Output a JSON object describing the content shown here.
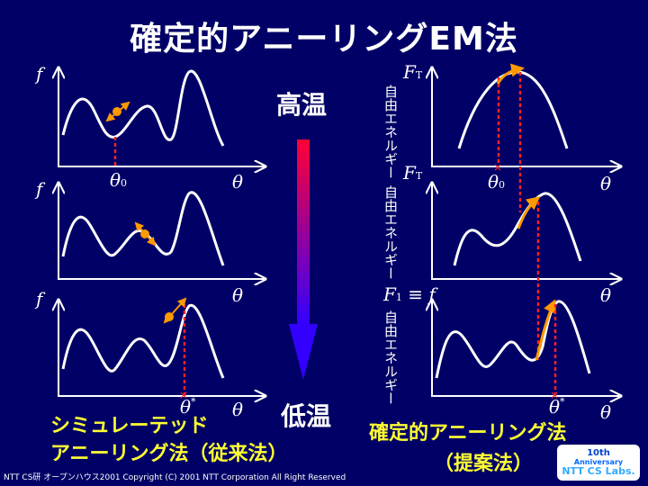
{
  "title": "確定的アニーリングEM法",
  "labels": {
    "f": "f",
    "theta": "θ",
    "theta_0": "θ",
    "sub_0": "0",
    "theta_star": "θ",
    "star": "*",
    "F": "F",
    "sub_T": "T",
    "F1_equiv_f": "F",
    "sub_1": "1",
    "equiv_f": "≡ f",
    "free_energy": "自由エネルギー"
  },
  "temperature": {
    "high": "高温",
    "low": "低温"
  },
  "captions": {
    "simulated_line1": "シミュレーテッド",
    "simulated_line2": "アニーリング法（従来法）",
    "da_line1": "確定的アニーリング法",
    "da_line2": "（提案法）"
  },
  "footer": "NTT CS研 オープンハウス2001   Copyright (C) 2001 NTT Corporation All Right  Reserved",
  "logo": {
    "line1": "10th",
    "line2": "Anniversary",
    "line3": "NTT CS Labs."
  },
  "colors": {
    "background": "#000066",
    "curve": "#ffffff",
    "marker": "#ff9900",
    "dashed": "#ff2222",
    "caption": "#ffff33",
    "arrow_top": "#ff0033",
    "arrow_bottom": "#3300ff"
  }
}
